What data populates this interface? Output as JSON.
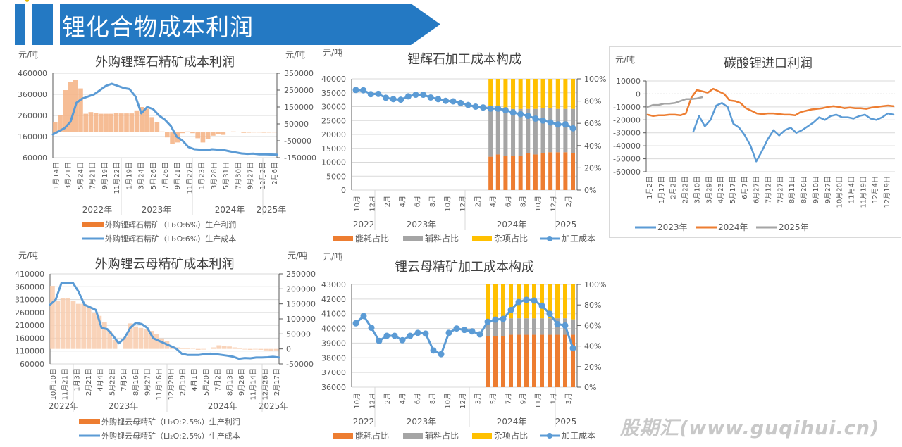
{
  "header": {
    "title": "锂化合物成本利润",
    "accent": "#2479c3"
  },
  "watermark": "股期汇(www.guqihui.cn)",
  "chart_data": [
    {
      "id": "spodumene_profit",
      "type": "bar+line",
      "title": "外购锂辉石精矿成本利润",
      "ylabel_left": "元/吨",
      "ylabel_right": "元/吨",
      "ylim_left": [
        60000,
        460000
      ],
      "yticks_left": [
        "460000",
        "360000",
        "260000",
        "160000",
        "60000"
      ],
      "ylim_right": [
        -150000,
        350000
      ],
      "yticks_right": [
        "350000",
        "250000",
        "150000",
        "50000",
        "-50000",
        "-150000"
      ],
      "xticks": [
        "1月14日",
        "3月21日",
        "5月24日",
        "7月21日",
        "9月19日",
        "11月22日",
        "1月19日",
        "3月24日",
        "5月26日",
        "7月26日",
        "9月21日",
        "11月27日",
        "1月23日",
        "3月28日",
        "5月31日",
        "7月30日",
        "9月27日",
        "12月2日",
        "2月6日"
      ],
      "year_groups": [
        "2022年",
        "2023年",
        "2024年",
        "2025年"
      ],
      "legend": [
        "外购锂辉石精矿（Li₂O:6%）生产利润",
        "外购锂辉石精矿（Li₂O:6%）生产成本"
      ],
      "series": [
        {
          "name": "外购锂辉石精矿（Li₂O:6%）生产利润",
          "kind": "bar",
          "axis": "right",
          "color": "#f4b183",
          "values": [
            60000,
            100000,
            250000,
            300000,
            310000,
            260000,
            110000,
            120000,
            115000,
            110000,
            110000,
            110000,
            115000,
            112000,
            112000,
            112000,
            130000,
            150000,
            140000,
            90000,
            60000,
            5000,
            -30000,
            -70000,
            -60000,
            -5000,
            5000,
            -5000,
            -35000,
            -60000,
            -40000,
            -20000,
            -10000,
            -15000,
            3000,
            5000,
            2000,
            -3000,
            -2000,
            -1000,
            -1000,
            -2000,
            -1500,
            -1000
          ]
        },
        {
          "name": "外购锂辉石精矿（Li₂O:6%）生产成本",
          "kind": "line",
          "axis": "left",
          "color": "#5b9bd5",
          "values": [
            170000,
            185000,
            200000,
            230000,
            320000,
            340000,
            350000,
            360000,
            380000,
            400000,
            410000,
            400000,
            390000,
            385000,
            350000,
            270000,
            300000,
            290000,
            260000,
            240000,
            210000,
            160000,
            140000,
            110000,
            100000,
            98000,
            95000,
            100000,
            98000,
            96000,
            90000,
            85000,
            80000,
            78000,
            79000,
            76000,
            76000,
            75000,
            74000
          ]
        }
      ]
    },
    {
      "id": "spodumene_processing",
      "type": "stacked-bar+line",
      "title": "锂辉石加工成本构成",
      "ylabel_left": "元/吨",
      "ylim_left": [
        0,
        40000
      ],
      "yticks_left": [
        "40000",
        "35000",
        "30000",
        "25000",
        "20000",
        "15000",
        "10000",
        "5000",
        "0"
      ],
      "ylim_right": [
        0,
        100
      ],
      "yticks_right": [
        "100%",
        "80%",
        "60%",
        "40%",
        "20%",
        "0%"
      ],
      "xticks": [
        "10月",
        "12月",
        "2月",
        "4月",
        "6月",
        "8月",
        "10月",
        "12月",
        "2月",
        "4月",
        "6月",
        "8月",
        "10月",
        "12月",
        "2月"
      ],
      "year_groups": [
        "2022",
        "2023年",
        "2024年",
        "2025"
      ],
      "legend": [
        "能耗占比",
        "辅料占比",
        "杂项占比",
        "加工成本"
      ],
      "colors": {
        "energy": "#ed7d31",
        "aux": "#a5a5a5",
        "misc": "#ffc000",
        "cost": "#5b9bd5"
      },
      "cost_values": [
        36000,
        35900,
        34500,
        34600,
        33200,
        32700,
        32500,
        33700,
        34300,
        34300,
        33300,
        32700,
        32100,
        31900,
        31300,
        30600,
        30000,
        29700,
        29300,
        29300,
        28700,
        27900,
        27300,
        26700,
        25700,
        25000,
        24300,
        23600,
        23600,
        22200
      ],
      "bar_start_index": 18,
      "energy_pct": [
        30,
        32,
        31,
        31,
        31,
        33,
        32,
        33,
        34,
        34,
        34,
        33
      ],
      "aux_pct": [
        41,
        42,
        42,
        42,
        42,
        40,
        41,
        41,
        40,
        39,
        39,
        40
      ],
      "misc_pct": [
        29,
        26,
        27,
        27,
        27,
        27,
        27,
        26,
        26,
        27,
        27,
        27
      ]
    },
    {
      "id": "li2co3_import",
      "type": "line",
      "title": "碳酸锂进口利润",
      "ylabel": "元/吨",
      "ylim": [
        -60000,
        10000
      ],
      "yticks": [
        "10000",
        "0",
        "-10000",
        "-20000",
        "-30000",
        "-40000",
        "-50000",
        "-60000"
      ],
      "xticks": [
        "1月2日",
        "1月17日",
        "2月2日",
        "2月22日",
        "3月10日",
        "3月29日",
        "4月23日",
        "5月17日",
        "6月7日",
        "6月27日",
        "7月12日",
        "7月27日",
        "8月11日",
        "8月26日",
        "9月10日",
        "9月27日",
        "10月20日",
        "11月4日",
        "11月19日",
        "12月4日",
        "12月19日"
      ],
      "legend": [
        "2023年",
        "2024年",
        "2025年"
      ],
      "series": [
        {
          "name": "2023年",
          "color": "#5b9bd5",
          "values": [
            null,
            null,
            null,
            null,
            null,
            null,
            null,
            null,
            -29000,
            -17000,
            -25000,
            -20000,
            -9000,
            -7000,
            -10000,
            -23000,
            -26000,
            -32000,
            -40000,
            -52000,
            -44000,
            -35000,
            -28000,
            -32000,
            -28000,
            -26000,
            -30000,
            -28000,
            -25000,
            -22000,
            -18000,
            -20000,
            -17000,
            -16000,
            -18000,
            -18000,
            -19000,
            -17000,
            -16000,
            -19000,
            -20000,
            -18000,
            -15000,
            -16000
          ]
        },
        {
          "name": "2024年",
          "color": "#ed7d31",
          "values": [
            -16000,
            -17000,
            -16500,
            -16500,
            -16000,
            -16000,
            -16500,
            -15000,
            -3000,
            3000,
            2000,
            1000,
            4000,
            2000,
            0,
            -5000,
            -5500,
            -7000,
            -11000,
            -13000,
            -15000,
            -15500,
            -15000,
            -15000,
            -15500,
            -16000,
            -16000,
            -16500,
            -14000,
            -13000,
            -12000,
            -11500,
            -11000,
            -10000,
            -9500,
            -10000,
            -11000,
            -10500,
            -11000,
            -11000,
            -11500,
            -10500,
            -10000,
            -9500,
            -9000,
            -9500
          ]
        },
        {
          "name": "2025年",
          "color": "#a5a5a5",
          "values": [
            -10000,
            -8500,
            -8500,
            -7500,
            -7500,
            -7000,
            -5500,
            -4000,
            -4000,
            -3500,
            -2500
          ]
        }
      ]
    },
    {
      "id": "lepidolite_profit",
      "type": "bar+line",
      "title": "外购锂云母精矿成本利润",
      "ylabel_left": "元/吨",
      "ylabel_right": "元/吨",
      "ylim_left": [
        60000,
        410000
      ],
      "yticks_left": [
        "410000",
        "360000",
        "310000",
        "260000",
        "210000",
        "160000",
        "110000",
        "60000"
      ],
      "ylim_right": [
        -50000,
        250000
      ],
      "yticks_right": [
        "250000",
        "200000",
        "150000",
        "100000",
        "50000",
        "0",
        "-50000"
      ],
      "xticks": [
        "10月10日",
        "11月21日",
        "1月3日",
        "2月21日",
        "4月4日",
        "5月22日",
        "7月5日",
        "8月16日",
        "9月27日",
        "11月16日",
        "12月28日",
        "2月19日",
        "4月1日",
        "5月20日",
        "7月2日",
        "8月13日",
        "9月26日",
        "11月14日",
        "12月26日",
        "2月17日"
      ],
      "year_groups": [
        "2022年",
        "2023年",
        "2024年",
        "2025年"
      ],
      "legend": [
        "外购锂云母精矿（Li₂O:2.5%）生产利润",
        "外购锂云母精矿（Li₂O:2.5%）生产成本"
      ],
      "series": [
        {
          "name": "外购锂云母精矿（Li₂O:2.5%）生产利润",
          "kind": "bar",
          "axis": "right",
          "color": "#f8cbad",
          "values": [
            210000,
            160000,
            170000,
            170000,
            160000,
            150000,
            150000,
            140000,
            120000,
            110000,
            90000,
            60000,
            30000,
            0,
            40000,
            85000,
            75000,
            70000,
            65000,
            60000,
            50000,
            35000,
            25000,
            10000,
            5000,
            3000,
            2000,
            1000,
            -3000,
            -2000,
            0,
            5000,
            12000,
            10000,
            8000,
            5000,
            2000,
            -2000,
            -3000,
            -2000,
            -3000,
            -5000,
            -6000,
            -5000
          ]
        },
        {
          "name": "外购锂云母精矿（Li₂O:2.5%）生产成本",
          "kind": "line",
          "axis": "left",
          "color": "#5b9bd5",
          "values": [
            290000,
            310000,
            375000,
            375000,
            375000,
            340000,
            290000,
            280000,
            270000,
            200000,
            195000,
            170000,
            140000,
            160000,
            200000,
            220000,
            215000,
            200000,
            160000,
            150000,
            140000,
            130000,
            120000,
            100000,
            95000,
            95000,
            95000,
            98000,
            100000,
            98000,
            95000,
            92000,
            88000,
            80000,
            83000,
            82000,
            85000,
            85000,
            86000,
            88000,
            85000
          ]
        }
      ]
    },
    {
      "id": "lepidolite_processing",
      "type": "stacked-bar+line",
      "title": "锂云母精矿加工成本构成",
      "ylabel_left": "元/吨",
      "ylim_left": [
        36000,
        43000
      ],
      "yticks_left": [
        "43000",
        "42000",
        "41000",
        "40000",
        "39000",
        "38000",
        "37000",
        "36000"
      ],
      "ylim_right": [
        0,
        100
      ],
      "yticks_right": [
        "100%",
        "80%",
        "60%",
        "40%",
        "20%",
        "0%"
      ],
      "xticks": [
        "10月",
        "12月",
        "2月",
        "4月",
        "6月",
        "8月",
        "10月",
        "12月",
        "3月",
        "5月",
        "7月",
        "9月",
        "11月",
        "1月",
        "3月"
      ],
      "year_groups": [
        "2022",
        "2023年",
        "2024年",
        "2025"
      ],
      "legend": [
        "能耗占比",
        "辅料占比",
        "杂项占比",
        "加工成本"
      ],
      "colors": {
        "energy": "#ed7d31",
        "aux": "#a5a5a5",
        "misc": "#ffc000",
        "cost": "#5b9bd5"
      },
      "cost_values": [
        40350,
        40850,
        40050,
        39150,
        39500,
        39500,
        39200,
        39500,
        39700,
        39650,
        38500,
        38250,
        39700,
        40000,
        39900,
        39800,
        39600,
        40450,
        40600,
        40650,
        41250,
        41800,
        41950,
        41900,
        41550,
        41000,
        40300,
        40200,
        38650
      ],
      "bar_start_index": 17,
      "energy_pct": [
        50,
        50,
        50,
        51,
        51,
        51,
        51,
        51,
        51,
        51,
        51,
        51
      ],
      "aux_pct": [
        15,
        16,
        16,
        16,
        16,
        16,
        16,
        16,
        16,
        16,
        16,
        15
      ],
      "misc_pct": [
        35,
        34,
        34,
        33,
        33,
        33,
        33,
        33,
        33,
        33,
        33,
        34
      ]
    }
  ]
}
